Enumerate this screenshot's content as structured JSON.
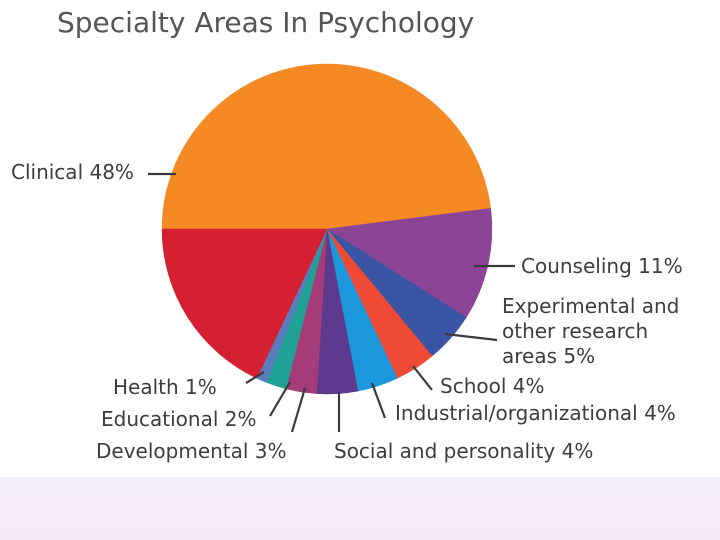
{
  "chart_data": {
    "type": "pie",
    "title": "Specialty Areas In Psychology",
    "slices": [
      {
        "label": "Clinical 48%",
        "value": 48,
        "color": "#f58a25"
      },
      {
        "label": "Counseling 11%",
        "value": 11,
        "color": "#8c4596"
      },
      {
        "label": "Experimental and other research areas 5%",
        "lines": [
          "Experimental and",
          "other research",
          "areas 5%"
        ],
        "value": 5,
        "color": "#3b55a5"
      },
      {
        "label": "School 4%",
        "value": 4,
        "color": "#ef4a35"
      },
      {
        "label": "Industrial/organizational 4%",
        "value": 4,
        "color": "#1d97dc"
      },
      {
        "label": "Social and personality 4%",
        "value": 4,
        "color": "#5e3a8f"
      },
      {
        "label": "Developmental 3%",
        "value": 3,
        "color": "#a53b78"
      },
      {
        "label": "Educational 2%",
        "value": 2,
        "color": "#1fa294"
      },
      {
        "label": "Health 1%",
        "value": 1,
        "color": "#5b7bbf"
      },
      {
        "label": "",
        "value": 18,
        "color": "#d42031"
      }
    ]
  }
}
